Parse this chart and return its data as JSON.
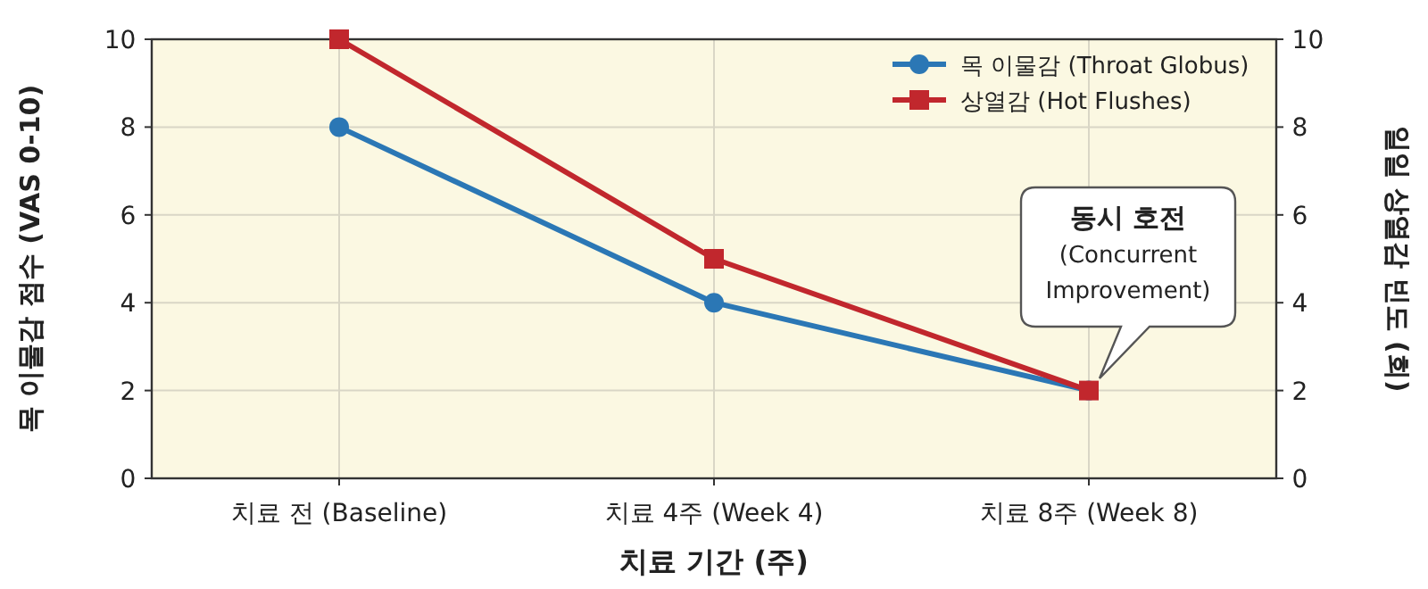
{
  "chart_data": {
    "type": "line",
    "xlabel": "치료 기간 (주)",
    "ylabel": "목 이물감 점수 (VAS 0-10)",
    "y2label": "일일 상열감 빈도 (회)",
    "categories": [
      "치료 전 (Baseline)",
      "치료 4주 (Week 4)",
      "치료 8주 (Week 8)"
    ],
    "series": [
      {
        "name": "목 이물감 (Throat Globus)",
        "color": "#2b77b5",
        "values": [
          8,
          4,
          2
        ],
        "marker": "circle"
      },
      {
        "name": "상열감 (Hot Flushes)",
        "color": "#c1272d",
        "values": [
          10,
          5,
          2
        ],
        "marker": "square"
      }
    ],
    "ylim": [
      0,
      10
    ],
    "yticks": [
      0,
      2,
      4,
      6,
      8,
      10
    ],
    "y2lim": [
      0,
      10
    ],
    "y2ticks": [
      0,
      2,
      4,
      6,
      8,
      10
    ],
    "grid": true,
    "legend": "top right",
    "annotations": [
      "동시 호전\n(Concurrent\nImprovement)"
    ]
  }
}
